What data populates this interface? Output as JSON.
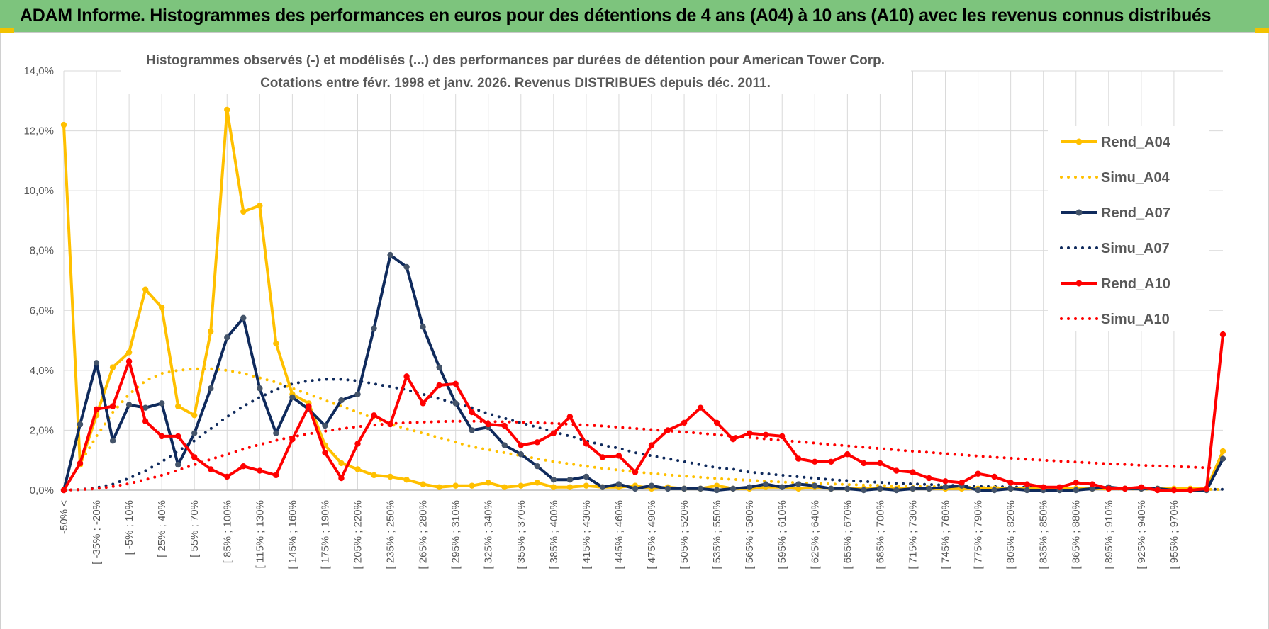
{
  "banner": {
    "title": "ADAM Informe. Histogrammes des performances en euros pour des détentions de 4 ans (A04) à 10 ans (A10) avec les revenus connus distribués"
  },
  "colors": {
    "banner_bg": "#7dc47d",
    "a04": "#ffc000",
    "a07": "#0f2a5c",
    "a10": "#ff0000",
    "grid": "#d9d9d9",
    "axis_text": "#595959"
  },
  "chart_data": {
    "type": "line",
    "title": "Histogrammes observés (-) et modélisés (...) des performances par durées de détention pour American Tower Corp.",
    "subtitle": "Cotations entre févr. 1998 et janv. 2026. Revenus DISTRIBUES depuis déc. 2011.",
    "xlabel": "",
    "ylabel": "",
    "ylim": [
      0,
      14
    ],
    "yticks": [
      "0,0%",
      "2,0%",
      "4,0%",
      "6,0%",
      "8,0%",
      "10,0%",
      "12,0%",
      "14,0%"
    ],
    "grid": true,
    "legend_position": "right",
    "n_points": 72,
    "x_labels": [
      "-50% <",
      "[ -35% ; -20%",
      "[ -5% ; 10%",
      "[ 25% ; 40%",
      "[ 55% ; 70%",
      "[ 85% ; 100%",
      "[ 115% ; 130%",
      "[ 145% ; 160%",
      "[ 175% ; 190%",
      "[ 205% ; 220%",
      "[ 235% ; 250%",
      "[ 265% ; 280%",
      "[ 295% ; 310%",
      "[ 325% ; 340%",
      "[ 355% ; 370%",
      "[ 385% ; 400%",
      "[ 415% ; 430%",
      "[ 445% ; 460%",
      "[ 475% ; 490%",
      "[ 505% ; 520%",
      "[ 535% ; 550%",
      "[ 565% ; 580%",
      "[ 595% ; 610%",
      "[ 625% ; 640%",
      "[ 655% ; 670%",
      "[ 685% ; 700%",
      "[ 715% ; 730%",
      "[ 745% ; 760%",
      "[ 775% ; 790%",
      "[ 805% ; 820%",
      "[ 835% ; 850%",
      "[ 865% ; 880%",
      "[ 895% ; 910%",
      "[ 925% ; 940%",
      "[ 955% ; 970%"
    ],
    "series": [
      {
        "name": "Rend_A04",
        "style": "solid",
        "color": "#ffc000",
        "values": [
          12.2,
          0.85,
          2.5,
          4.1,
          4.6,
          6.7,
          6.1,
          2.8,
          2.5,
          5.3,
          12.7,
          9.3,
          9.5,
          4.9,
          3.2,
          2.9,
          1.5,
          0.9,
          0.7,
          0.5,
          0.45,
          0.35,
          0.2,
          0.1,
          0.15,
          0.15,
          0.25,
          0.1,
          0.15,
          0.25,
          0.1,
          0.1,
          0.15,
          0.1,
          0.1,
          0.15,
          0.05,
          0.1,
          0.05,
          0.05,
          0.15,
          0.05,
          0.05,
          0.1,
          0.1,
          0.05,
          0.1,
          0.05,
          0.05,
          0.05,
          0.05,
          0.05,
          0.05,
          0.05,
          0.05,
          0.05,
          0.05,
          0.05,
          0.05,
          0.05,
          0.05,
          0.05,
          0.05,
          0.05,
          0.05,
          0.05,
          0.05,
          0.05,
          0.05,
          0.05,
          0.05,
          1.3
        ]
      },
      {
        "name": "Simu_A04",
        "style": "dotted",
        "color": "#ffc000",
        "values": [
          0,
          0.9,
          1.8,
          2.6,
          3.2,
          3.65,
          3.9,
          4.0,
          4.05,
          4.05,
          4.0,
          3.9,
          3.75,
          3.6,
          3.4,
          3.2,
          3.0,
          2.8,
          2.6,
          2.4,
          2.2,
          2.05,
          1.9,
          1.75,
          1.6,
          1.45,
          1.35,
          1.25,
          1.15,
          1.05,
          0.95,
          0.88,
          0.8,
          0.73,
          0.67,
          0.61,
          0.56,
          0.51,
          0.47,
          0.43,
          0.39,
          0.36,
          0.33,
          0.3,
          0.27,
          0.25,
          0.23,
          0.21,
          0.19,
          0.17,
          0.16,
          0.14,
          0.13,
          0.12,
          0.11,
          0.1,
          0.09,
          0.08,
          0.08,
          0.07,
          0.06,
          0.06,
          0.05,
          0.05,
          0.04,
          0.04,
          0.04,
          0.03,
          0.03,
          0.03,
          0.03,
          0.02
        ]
      },
      {
        "name": "Rend_A07",
        "style": "solid",
        "color": "#0f2a5c",
        "values": [
          0,
          2.2,
          4.25,
          1.65,
          2.85,
          2.75,
          2.9,
          0.85,
          1.9,
          3.4,
          5.1,
          5.75,
          3.4,
          1.9,
          3.1,
          2.7,
          2.15,
          3.0,
          3.2,
          5.4,
          7.85,
          7.45,
          5.45,
          4.1,
          2.9,
          2.0,
          2.1,
          1.5,
          1.2,
          0.8,
          0.35,
          0.35,
          0.45,
          0.1,
          0.2,
          0.05,
          0.15,
          0.05,
          0.05,
          0.05,
          0.0,
          0.05,
          0.1,
          0.2,
          0.1,
          0.2,
          0.15,
          0.05,
          0.05,
          0.0,
          0.05,
          0.0,
          0.05,
          0.05,
          0.1,
          0.15,
          0.0,
          0.0,
          0.05,
          0.0,
          0.0,
          0.0,
          0.0,
          0.05,
          0.1,
          0.05,
          0.05,
          0.05,
          0.0,
          0.0,
          0.0,
          1.05
        ]
      },
      {
        "name": "Simu_A07",
        "style": "dotted",
        "color": "#0f2a5c",
        "values": [
          0,
          0.02,
          0.08,
          0.2,
          0.4,
          0.65,
          0.95,
          1.3,
          1.65,
          2.05,
          2.45,
          2.8,
          3.1,
          3.35,
          3.55,
          3.65,
          3.7,
          3.7,
          3.65,
          3.55,
          3.45,
          3.35,
          3.2,
          3.05,
          2.9,
          2.75,
          2.55,
          2.4,
          2.25,
          2.1,
          1.95,
          1.8,
          1.65,
          1.5,
          1.4,
          1.25,
          1.15,
          1.05,
          0.95,
          0.85,
          0.75,
          0.7,
          0.6,
          0.55,
          0.5,
          0.45,
          0.4,
          0.35,
          0.32,
          0.29,
          0.26,
          0.23,
          0.21,
          0.19,
          0.17,
          0.15,
          0.13,
          0.12,
          0.11,
          0.1,
          0.09,
          0.08,
          0.07,
          0.06,
          0.06,
          0.05,
          0.05,
          0.04,
          0.04,
          0.03,
          0.03,
          0.03
        ]
      },
      {
        "name": "Rend_A10",
        "style": "solid",
        "color": "#ff0000",
        "values": [
          0,
          0.9,
          2.7,
          2.8,
          4.3,
          2.3,
          1.8,
          1.8,
          1.1,
          0.7,
          0.45,
          0.8,
          0.65,
          0.5,
          1.7,
          2.8,
          1.25,
          0.4,
          1.55,
          2.5,
          2.2,
          3.8,
          2.9,
          3.5,
          3.55,
          2.6,
          2.2,
          2.15,
          1.5,
          1.6,
          1.9,
          2.45,
          1.55,
          1.1,
          1.15,
          0.6,
          1.5,
          2.0,
          2.25,
          2.75,
          2.25,
          1.7,
          1.9,
          1.85,
          1.8,
          1.05,
          0.95,
          0.95,
          1.2,
          0.9,
          0.9,
          0.65,
          0.6,
          0.4,
          0.3,
          0.25,
          0.55,
          0.45,
          0.25,
          0.2,
          0.1,
          0.1,
          0.25,
          0.2,
          0.05,
          0.05,
          0.1,
          0.0,
          0.0,
          0.0,
          0.05,
          5.2
        ]
      },
      {
        "name": "Simu_A10",
        "style": "dotted",
        "color": "#ff0000",
        "values": [
          0,
          0.02,
          0.05,
          0.12,
          0.22,
          0.35,
          0.5,
          0.67,
          0.85,
          1.03,
          1.2,
          1.37,
          1.52,
          1.66,
          1.78,
          1.88,
          1.97,
          2.05,
          2.12,
          2.17,
          2.22,
          2.25,
          2.27,
          2.29,
          2.3,
          2.3,
          2.29,
          2.28,
          2.27,
          2.25,
          2.23,
          2.2,
          2.17,
          2.14,
          2.1,
          2.06,
          2.02,
          1.98,
          1.94,
          1.9,
          1.85,
          1.8,
          1.76,
          1.71,
          1.66,
          1.62,
          1.57,
          1.52,
          1.48,
          1.43,
          1.39,
          1.34,
          1.3,
          1.26,
          1.22,
          1.18,
          1.14,
          1.1,
          1.07,
          1.03,
          1.0,
          0.97,
          0.94,
          0.91,
          0.88,
          0.86,
          0.83,
          0.81,
          0.79,
          0.77,
          0.75,
          0.73
        ]
      }
    ]
  }
}
